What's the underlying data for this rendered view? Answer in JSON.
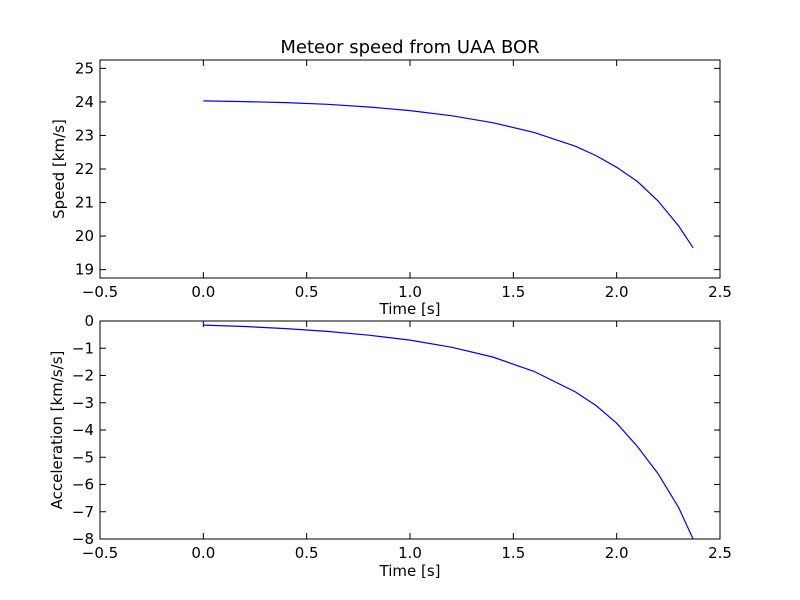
{
  "chart_data": [
    {
      "type": "line",
      "title": "Meteor speed from  UAA BOR",
      "xlabel": "Time [s]",
      "ylabel": "Speed [km/s]",
      "xlim": [
        -0.5,
        2.5
      ],
      "ylim": [
        18.75,
        25.25
      ],
      "xticks": [
        -0.5,
        0.0,
        0.5,
        1.0,
        1.5,
        2.0,
        2.5
      ],
      "xtick_labels": [
        "−0.5",
        "0.0",
        "0.5",
        "1.0",
        "1.5",
        "2.0",
        "2.5"
      ],
      "yticks": [
        19,
        20,
        21,
        22,
        23,
        24,
        25
      ],
      "ytick_labels": [
        "19",
        "20",
        "21",
        "22",
        "23",
        "24",
        "25"
      ],
      "grid": false,
      "color": "#0000ff",
      "series": [
        {
          "x": [
            0.0,
            0.2,
            0.4,
            0.6,
            0.8,
            1.0,
            1.2,
            1.4,
            1.6,
            1.8,
            1.9,
            2.0,
            2.1,
            2.2,
            2.3,
            2.37
          ],
          "y": [
            24.03,
            24.01,
            23.98,
            23.93,
            23.85,
            23.74,
            23.59,
            23.38,
            23.09,
            22.68,
            22.4,
            22.05,
            21.63,
            21.05,
            20.3,
            19.65
          ]
        }
      ]
    },
    {
      "type": "line",
      "title": "",
      "xlabel": "Time [s]",
      "ylabel": "Acceleration [km/s/s]",
      "xlim": [
        -0.5,
        2.5
      ],
      "ylim": [
        -8,
        0
      ],
      "xticks": [
        -0.5,
        0.0,
        0.5,
        1.0,
        1.5,
        2.0,
        2.5
      ],
      "xtick_labels": [
        "−0.5",
        "0.0",
        "0.5",
        "1.0",
        "1.5",
        "2.0",
        "2.5"
      ],
      "yticks": [
        0,
        -1,
        -2,
        -3,
        -4,
        -5,
        -6,
        -7,
        -8
      ],
      "ytick_labels": [
        "0",
        "−1",
        "−2",
        "−3",
        "−4",
        "−5",
        "−6",
        "−7",
        "−8"
      ],
      "grid": false,
      "color": "#0000ff",
      "series": [
        {
          "x": [
            0.0,
            0.2,
            0.4,
            0.6,
            0.8,
            1.0,
            1.2,
            1.4,
            1.6,
            1.8,
            1.9,
            2.0,
            2.1,
            2.2,
            2.3,
            2.37
          ],
          "y": [
            -0.15,
            -0.2,
            -0.28,
            -0.38,
            -0.52,
            -0.7,
            -0.96,
            -1.32,
            -1.85,
            -2.6,
            -3.1,
            -3.75,
            -4.6,
            -5.6,
            -6.85,
            -8.0
          ]
        }
      ]
    }
  ]
}
